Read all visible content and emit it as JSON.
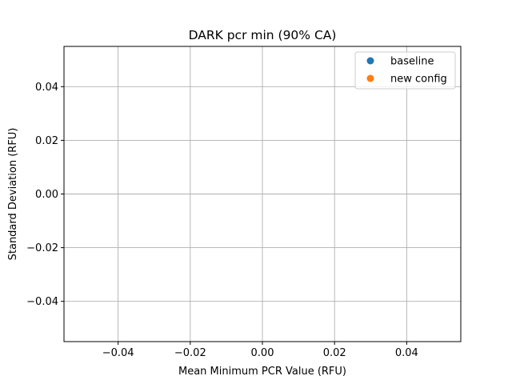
{
  "chart_data": {
    "type": "scatter",
    "title": "DARK pcr min (90% CA)",
    "xlabel": "Mean Minimum PCR Value (RFU)",
    "ylabel": "Standard Deviation (RFU)",
    "xlim": [
      -0.055,
      0.055
    ],
    "ylim": [
      -0.055,
      0.055
    ],
    "xticks": [
      -0.04,
      -0.02,
      0.0,
      0.02,
      0.04
    ],
    "yticks": [
      -0.04,
      -0.02,
      0.0,
      0.02,
      0.04
    ],
    "xtick_labels": [
      "−0.04",
      "−0.02",
      "0.00",
      "0.02",
      "0.04"
    ],
    "ytick_labels": [
      "−0.04",
      "−0.02",
      "0.00",
      "0.02",
      "0.04"
    ],
    "grid": true,
    "legend_position": "top-right",
    "series": [
      {
        "name": "baseline",
        "color": "#1f77b4",
        "x": [],
        "y": []
      },
      {
        "name": "new config",
        "color": "#ff7f0e",
        "x": [],
        "y": []
      }
    ]
  }
}
